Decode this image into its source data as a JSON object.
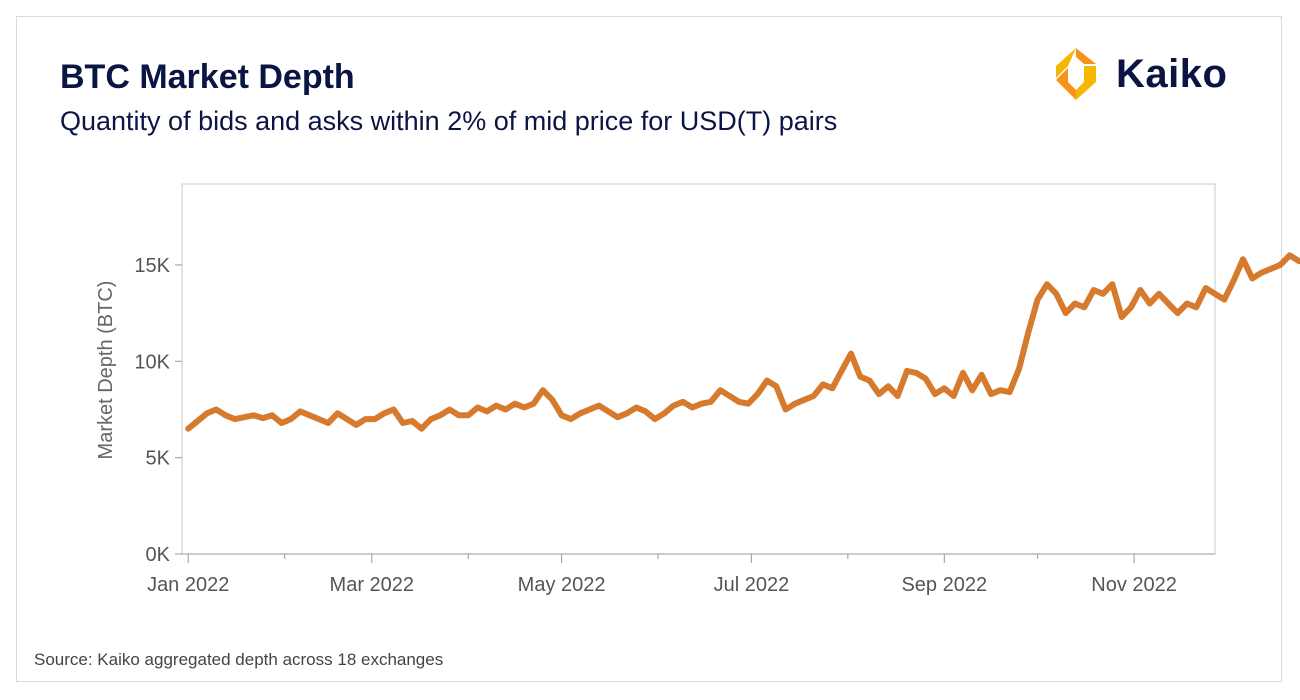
{
  "header": {
    "title": "BTC Market Depth",
    "subtitle": "Quantity of bids and asks within 2% of mid price for USD(T) pairs"
  },
  "brand": {
    "name": "Kaiko",
    "icon": "kaiko-logo-icon",
    "accent_colors": [
      "#f7931a",
      "#f5b800"
    ]
  },
  "footer": {
    "source": "Source: Kaiko aggregated depth across 18 exchanges"
  },
  "colors": {
    "line": "#d67a2e",
    "axis": "#999999",
    "text": "#0b1544"
  },
  "chart_data": {
    "type": "line",
    "title": "BTC Market Depth",
    "xlabel": "",
    "ylabel": "Market Depth (BTC)",
    "ylim": [
      0,
      19200
    ],
    "yticks": [
      0,
      5000,
      10000,
      15000
    ],
    "ytick_labels": [
      "0K",
      "5K",
      "10K",
      "15K"
    ],
    "xlim": [
      -2,
      330
    ],
    "xticks": [
      0,
      59,
      120,
      181,
      243,
      304
    ],
    "xtick_labels": [
      "Jan 2022",
      "Mar 2022",
      "May 2022",
      "Jul 2022",
      "Sep 2022",
      "Nov 2022"
    ],
    "x_minor_ticks": [
      31,
      90,
      151,
      212,
      273,
      334
    ],
    "grid": false,
    "series": [
      {
        "name": "Market Depth",
        "x_unit": "days since 2022-01-01",
        "points": [
          [
            0,
            6500
          ],
          [
            3,
            6900
          ],
          [
            6,
            7300
          ],
          [
            9,
            7500
          ],
          [
            12,
            7200
          ],
          [
            15,
            7000
          ],
          [
            18,
            7100
          ],
          [
            21,
            7200
          ],
          [
            24,
            7050
          ],
          [
            27,
            7200
          ],
          [
            30,
            6800
          ],
          [
            33,
            7000
          ],
          [
            36,
            7400
          ],
          [
            39,
            7200
          ],
          [
            42,
            7000
          ],
          [
            45,
            6800
          ],
          [
            48,
            7300
          ],
          [
            51,
            7000
          ],
          [
            54,
            6700
          ],
          [
            57,
            7000
          ],
          [
            60,
            7000
          ],
          [
            63,
            7300
          ],
          [
            66,
            7500
          ],
          [
            69,
            6800
          ],
          [
            72,
            6900
          ],
          [
            75,
            6500
          ],
          [
            78,
            7000
          ],
          [
            81,
            7200
          ],
          [
            84,
            7500
          ],
          [
            87,
            7200
          ],
          [
            90,
            7200
          ],
          [
            93,
            7600
          ],
          [
            96,
            7400
          ],
          [
            99,
            7700
          ],
          [
            102,
            7500
          ],
          [
            105,
            7800
          ],
          [
            108,
            7600
          ],
          [
            111,
            7800
          ],
          [
            114,
            8500
          ],
          [
            117,
            8000
          ],
          [
            120,
            7200
          ],
          [
            123,
            7000
          ],
          [
            126,
            7300
          ],
          [
            129,
            7500
          ],
          [
            132,
            7700
          ],
          [
            135,
            7400
          ],
          [
            138,
            7100
          ],
          [
            141,
            7300
          ],
          [
            144,
            7600
          ],
          [
            147,
            7400
          ],
          [
            150,
            7000
          ],
          [
            153,
            7300
          ],
          [
            156,
            7700
          ],
          [
            159,
            7900
          ],
          [
            162,
            7600
          ],
          [
            165,
            7800
          ],
          [
            168,
            7900
          ],
          [
            171,
            8500
          ],
          [
            174,
            8200
          ],
          [
            177,
            7900
          ],
          [
            180,
            7800
          ],
          [
            183,
            8300
          ],
          [
            186,
            9000
          ],
          [
            189,
            8700
          ],
          [
            192,
            7500
          ],
          [
            195,
            7800
          ],
          [
            198,
            8000
          ],
          [
            201,
            8200
          ],
          [
            204,
            8800
          ],
          [
            207,
            8600
          ],
          [
            210,
            9500
          ],
          [
            213,
            10400
          ],
          [
            216,
            9200
          ],
          [
            219,
            9000
          ],
          [
            222,
            8300
          ],
          [
            225,
            8700
          ],
          [
            228,
            8200
          ],
          [
            231,
            9500
          ],
          [
            234,
            9400
          ],
          [
            237,
            9100
          ],
          [
            240,
            8300
          ],
          [
            243,
            8600
          ],
          [
            246,
            8200
          ],
          [
            249,
            9400
          ],
          [
            252,
            8500
          ],
          [
            255,
            9300
          ],
          [
            258,
            8300
          ],
          [
            261,
            8500
          ],
          [
            264,
            8400
          ],
          [
            267,
            9600
          ],
          [
            270,
            11500
          ],
          [
            273,
            13200
          ],
          [
            276,
            14000
          ],
          [
            279,
            13500
          ],
          [
            282,
            12500
          ],
          [
            285,
            13000
          ],
          [
            288,
            12800
          ],
          [
            291,
            13700
          ],
          [
            294,
            13500
          ],
          [
            297,
            14000
          ],
          [
            300,
            12300
          ],
          [
            303,
            12800
          ],
          [
            306,
            13700
          ],
          [
            309,
            13000
          ],
          [
            312,
            13500
          ],
          [
            315,
            13000
          ],
          [
            318,
            12500
          ],
          [
            321,
            13000
          ],
          [
            324,
            12800
          ],
          [
            327,
            13800
          ],
          [
            330,
            13500
          ],
          [
            333,
            13200
          ],
          [
            336,
            14200
          ],
          [
            339,
            15300
          ],
          [
            342,
            14300
          ],
          [
            345,
            14600
          ],
          [
            348,
            14800
          ],
          [
            351,
            15000
          ],
          [
            354,
            15500
          ],
          [
            357,
            15200
          ]
        ]
      }
    ]
  }
}
